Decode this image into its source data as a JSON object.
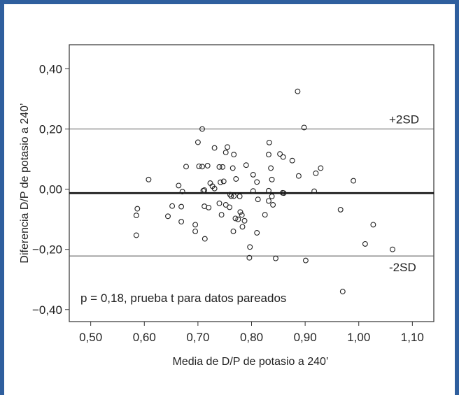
{
  "chart_data": {
    "type": "scatter",
    "title": "",
    "xlabel": "Media de D/P de potasio a 240’",
    "ylabel": "Diferencia D/P de potasio a 240’",
    "xlim": [
      0.46,
      1.14
    ],
    "ylim": [
      -0.44,
      0.48
    ],
    "x_ticks": [
      0.5,
      0.6,
      0.7,
      0.8,
      0.9,
      1.0,
      1.1
    ],
    "x_tick_labels": [
      "0,50",
      "0,60",
      "0,70",
      "0,80",
      "0,90",
      "1,00",
      "1,10"
    ],
    "y_ticks": [
      0.4,
      0.2,
      0.0,
      -0.2,
      -0.4
    ],
    "y_tick_labels": [
      "0,40",
      "0,20",
      "0,00",
      "−0,20",
      "−0,40"
    ],
    "grid": false,
    "reference_lines": [
      {
        "label": "+2SD",
        "y": 0.2
      },
      {
        "label": "",
        "y": -0.013
      },
      {
        "label": "-2SD",
        "y": -0.222
      }
    ],
    "annotation": "p = 0,18, prueba t para datos pareados",
    "points": [
      [
        0.886,
        0.325
      ],
      [
        0.898,
        0.205
      ],
      [
        0.708,
        0.2
      ],
      [
        0.7,
        0.156
      ],
      [
        0.833,
        0.155
      ],
      [
        0.755,
        0.14
      ],
      [
        0.731,
        0.137
      ],
      [
        0.752,
        0.122
      ],
      [
        0.767,
        0.115
      ],
      [
        0.832,
        0.115
      ],
      [
        0.853,
        0.117
      ],
      [
        0.859,
        0.107
      ],
      [
        0.876,
        0.095
      ],
      [
        0.79,
        0.08
      ],
      [
        0.929,
        0.07
      ],
      [
        0.92,
        0.053
      ],
      [
        0.678,
        0.075
      ],
      [
        0.702,
        0.076
      ],
      [
        0.708,
        0.075
      ],
      [
        0.718,
        0.078
      ],
      [
        0.74,
        0.074
      ],
      [
        0.746,
        0.074
      ],
      [
        0.765,
        0.07
      ],
      [
        0.836,
        0.07
      ],
      [
        0.888,
        0.044
      ],
      [
        0.803,
        0.048
      ],
      [
        0.608,
        0.032
      ],
      [
        0.771,
        0.034
      ],
      [
        0.838,
        0.032
      ],
      [
        0.723,
        0.02
      ],
      [
        0.727,
        0.01
      ],
      [
        0.742,
        0.023
      ],
      [
        0.748,
        0.026
      ],
      [
        0.81,
        0.024
      ],
      [
        0.99,
        0.028
      ],
      [
        0.664,
        0.012
      ],
      [
        0.671,
        -0.008
      ],
      [
        0.71,
        -0.005
      ],
      [
        0.712,
        -0.003
      ],
      [
        0.731,
        0.002
      ],
      [
        0.76,
        -0.018
      ],
      [
        0.762,
        -0.023
      ],
      [
        0.767,
        -0.023
      ],
      [
        0.778,
        -0.024
      ],
      [
        0.803,
        -0.006
      ],
      [
        0.832,
        -0.005
      ],
      [
        0.838,
        -0.024
      ],
      [
        0.858,
        -0.012
      ],
      [
        0.86,
        -0.013
      ],
      [
        0.917,
        -0.007
      ],
      [
        0.812,
        -0.034
      ],
      [
        0.832,
        -0.039
      ],
      [
        0.84,
        -0.052
      ],
      [
        0.652,
        -0.056
      ],
      [
        0.669,
        -0.058
      ],
      [
        0.712,
        -0.057
      ],
      [
        0.72,
        -0.061
      ],
      [
        0.74,
        -0.047
      ],
      [
        0.752,
        -0.052
      ],
      [
        0.759,
        -0.06
      ],
      [
        0.587,
        -0.065
      ],
      [
        0.585,
        -0.087
      ],
      [
        0.644,
        -0.09
      ],
      [
        0.669,
        -0.108
      ],
      [
        0.695,
        -0.118
      ],
      [
        0.744,
        -0.085
      ],
      [
        0.77,
        -0.097
      ],
      [
        0.775,
        -0.1
      ],
      [
        0.779,
        -0.076
      ],
      [
        0.782,
        -0.086
      ],
      [
        0.787,
        -0.105
      ],
      [
        0.783,
        -0.125
      ],
      [
        0.766,
        -0.14
      ],
      [
        0.825,
        -0.085
      ],
      [
        0.81,
        -0.145
      ],
      [
        0.695,
        -0.14
      ],
      [
        0.713,
        -0.165
      ],
      [
        0.585,
        -0.153
      ],
      [
        0.966,
        -0.068
      ],
      [
        1.027,
        -0.118
      ],
      [
        1.012,
        -0.182
      ],
      [
        1.063,
        -0.2
      ],
      [
        0.797,
        -0.192
      ],
      [
        0.796,
        -0.228
      ],
      [
        0.845,
        -0.23
      ],
      [
        0.901,
        -0.237
      ],
      [
        0.97,
        -0.34
      ]
    ]
  }
}
